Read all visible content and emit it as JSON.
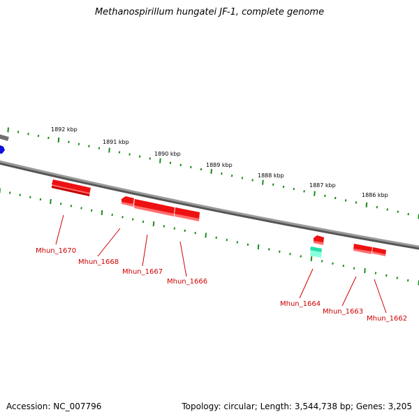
{
  "title": "Methanospirillum hungatei JF-1, complete genome",
  "footer": {
    "accession": "Accession: NC_007796",
    "summary": "Topology: circular; Length: 3,544,738 bp; Genes: 3,205"
  },
  "colors": {
    "background": "#ffffff",
    "backbone": "#808080",
    "tick": "#1a8a1a",
    "gene_red": "#ee1111",
    "gene_blue": "#1111dd",
    "gene_teal": "#22ddaa",
    "label_red": "#cc0000"
  },
  "scale_labels": [
    "1892 kbp",
    "1891 kbp",
    "1890 kbp",
    "1889 kbp",
    "1888 kbp",
    "1887 kbp",
    "1886 kbp"
  ],
  "gene_labels": [
    "Mhun_1670",
    "Mhun_1668",
    "Mhun_1667",
    "Mhun_1666",
    "Mhun_1664",
    "Mhun_1663",
    "Mhun_1662"
  ]
}
